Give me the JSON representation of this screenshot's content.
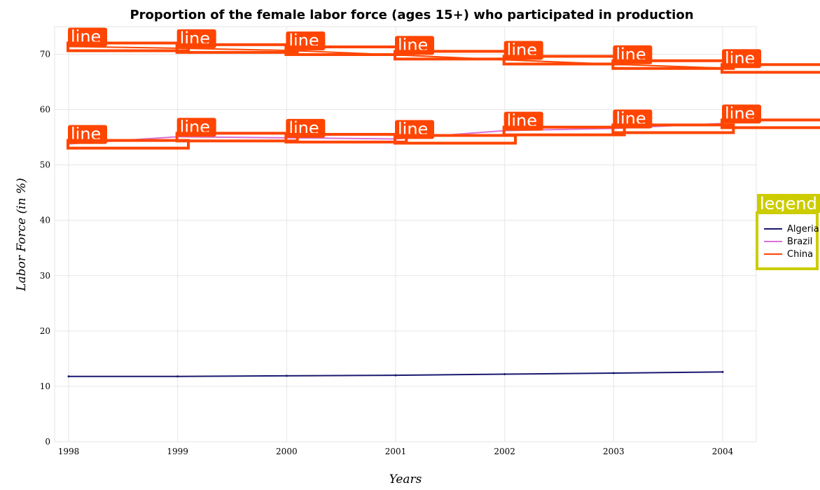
{
  "chart_data": {
    "type": "line",
    "title": "Proportion of the female labor force (ages 15+) who participated in production",
    "xlabel": "Years",
    "ylabel": "Labor Force (in %)",
    "x": [
      "1998",
      "1999",
      "2000",
      "2001",
      "2002",
      "2003",
      "2004"
    ],
    "ylim": [
      0,
      75
    ],
    "yticks": [
      0,
      10,
      20,
      30,
      40,
      50,
      60,
      70
    ],
    "grid": true,
    "legend_title": "legend",
    "legend_position": "right",
    "annotation_text": "line",
    "series": [
      {
        "name": "Algeria",
        "color": "#191970",
        "values": [
          11.8,
          11.8,
          11.9,
          12.0,
          12.2,
          12.4,
          12.6
        ]
      },
      {
        "name": "Brazil",
        "color": "#da70d6",
        "values": [
          53.8,
          55.1,
          54.9,
          54.7,
          56.2,
          56.6,
          57.5
        ]
      },
      {
        "name": "China",
        "color": "#ff4500",
        "values": [
          71.4,
          71.1,
          70.7,
          69.9,
          69.0,
          68.2,
          67.5
        ]
      }
    ]
  }
}
